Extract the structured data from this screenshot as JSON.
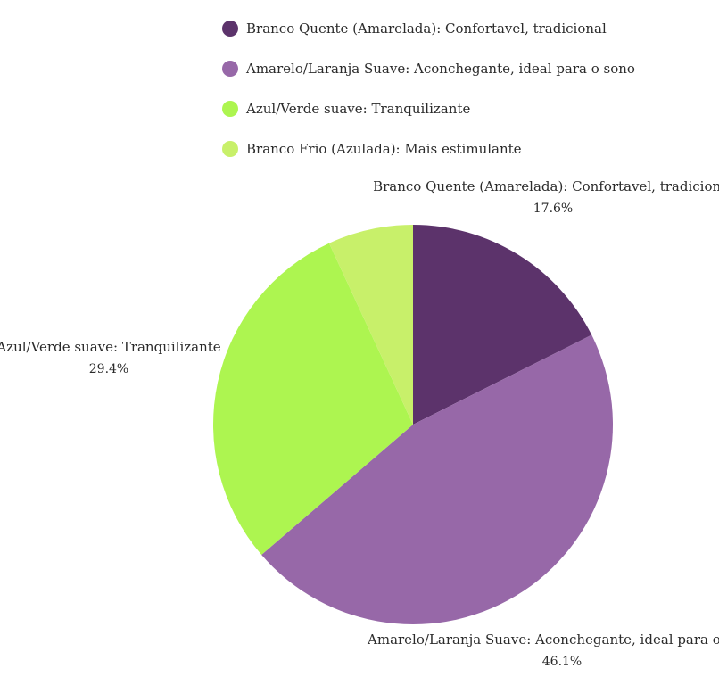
{
  "chart_data": {
    "type": "pie",
    "legend_position": "top",
    "slices": [
      {
        "label": "Branco Quente (Amarelada): Confortavel, tradicional",
        "value": 17.6,
        "value_label": "17.6%",
        "color": "#5c336b"
      },
      {
        "label": "Amarelo/Laranja Suave: Aconchegante, ideal para o sono",
        "value": 46.1,
        "value_label": "46.1%",
        "color": "#9768a8"
      },
      {
        "label": "Azul/Verde suave: Tranquilizante",
        "value": 29.4,
        "value_label": "29.4%",
        "color": "#adf550"
      },
      {
        "label": "Branco Frio (Azulada): Mais estimulante",
        "value": 6.9,
        "value_label": "",
        "color": "#c8f06a"
      }
    ]
  }
}
